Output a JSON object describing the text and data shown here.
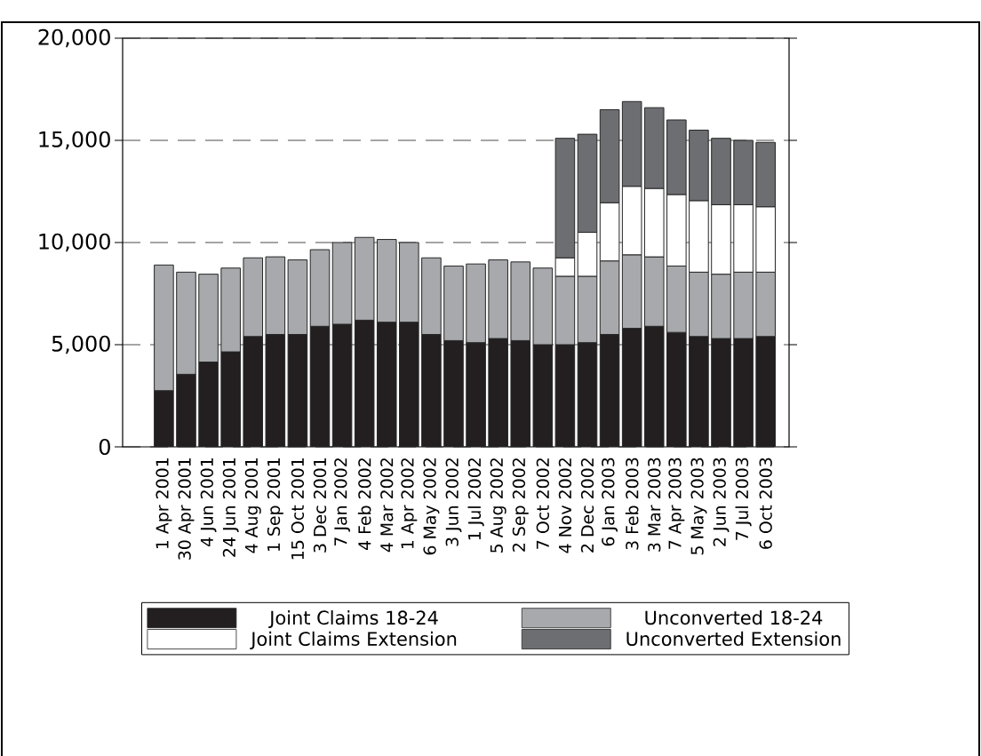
{
  "chart_data": {
    "type": "bar",
    "stacked": true,
    "categories": [
      "1 Apr 2001",
      "30 Apr 2001",
      "4 Jun 2001",
      "24 Jun 2001",
      "4 Aug 2001",
      "1 Sep 2001",
      "15 Oct 2001",
      "3 Dec 2001",
      "7 Jan 2002",
      "4 Feb 2002",
      "4 Mar 2002",
      "1 Apr 2002",
      "6 May 2002",
      "3 Jun 2002",
      "1 Jul 2002",
      "5 Aug 2002",
      "2 Sep 2002",
      "7 Oct 2002",
      "4 Nov 2002",
      "2 Dec 2002",
      "6 Jan 2003",
      "3 Feb 2003",
      "3 Mar 2003",
      "7 Apr 2003",
      "5 May 2003",
      "2 Jun 2003",
      "7 Jul 2003",
      "6 Oct 2003"
    ],
    "series": [
      {
        "name": "Joint Claims 18-24",
        "color": "#231f20",
        "values": [
          2750,
          3550,
          4150,
          4650,
          5400,
          5500,
          5500,
          5900,
          6000,
          6200,
          6100,
          6100,
          5500,
          5200,
          5100,
          5300,
          5200,
          5000,
          5000,
          5100,
          5500,
          5800,
          5900,
          5600,
          5400,
          5300,
          5300,
          5400
        ]
      },
      {
        "name": "Unconverted 18-24",
        "color": "#a7a9ac",
        "values": [
          6150,
          5000,
          4300,
          4100,
          3850,
          3800,
          3650,
          3750,
          4000,
          4050,
          4050,
          3900,
          3750,
          3650,
          3850,
          3850,
          3850,
          3750,
          3350,
          3250,
          3600,
          3600,
          3400,
          3250,
          3150,
          3150,
          3250,
          3150
        ]
      },
      {
        "name": "Joint Claims Extension",
        "color": "#ffffff",
        "values": [
          null,
          null,
          null,
          null,
          null,
          null,
          null,
          null,
          null,
          null,
          null,
          null,
          null,
          null,
          null,
          null,
          null,
          null,
          900,
          2150,
          2850,
          3350,
          3350,
          3500,
          3500,
          3400,
          3300,
          3200
        ]
      },
      {
        "name": "Unconverted Extension",
        "color": "#6d6e71",
        "values": [
          null,
          null,
          null,
          null,
          null,
          null,
          null,
          null,
          null,
          null,
          null,
          null,
          null,
          null,
          null,
          null,
          null,
          null,
          5850,
          4800,
          4550,
          4150,
          3950,
          3650,
          3450,
          3250,
          3150,
          3150
        ]
      }
    ],
    "ylim": [
      0,
      20000
    ],
    "yticks": [
      0,
      {
        "value": 5000,
        "label": "5,000"
      },
      {
        "value": 10000,
        "label": "10,000"
      },
      {
        "value": 15000,
        "label": "15,000"
      },
      {
        "value": 20000,
        "label": "20,000"
      }
    ],
    "grid": "y",
    "legend": "bottom"
  }
}
